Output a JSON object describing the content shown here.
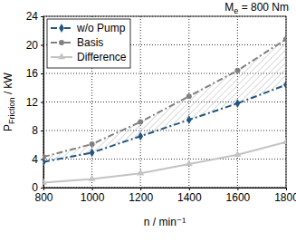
{
  "chart_data": {
    "type": "line",
    "annotation": "Me = 800 Nm",
    "xlabel": "n / min⁻¹",
    "ylabel": "PFriction / kW",
    "x": [
      800,
      1000,
      1200,
      1400,
      1600,
      1800
    ],
    "series": [
      {
        "name": "w/o Pump",
        "color": "#23557f",
        "marker": "diamond",
        "line_style": "dashdot",
        "values": [
          3.6,
          4.9,
          7.2,
          9.5,
          11.8,
          14.4
        ]
      },
      {
        "name": "Basis",
        "color": "#808080",
        "marker": "circle",
        "line_style": "dashdot",
        "values": [
          4.3,
          6.1,
          9.2,
          12.8,
          16.4,
          20.8
        ]
      },
      {
        "name": "Difference",
        "color": "#c3c3c3",
        "marker": "triangle",
        "line_style": "solid",
        "values": [
          0.7,
          1.2,
          2.0,
          3.3,
          4.6,
          6.4
        ]
      }
    ],
    "xlim": [
      800,
      1800
    ],
    "xticks": [
      800,
      1000,
      1200,
      1400,
      1600,
      1800
    ],
    "ylim": [
      0,
      24
    ],
    "yticks": [
      0,
      4,
      8,
      12,
      16,
      20,
      24
    ],
    "grid": true,
    "legend": "upper left"
  }
}
